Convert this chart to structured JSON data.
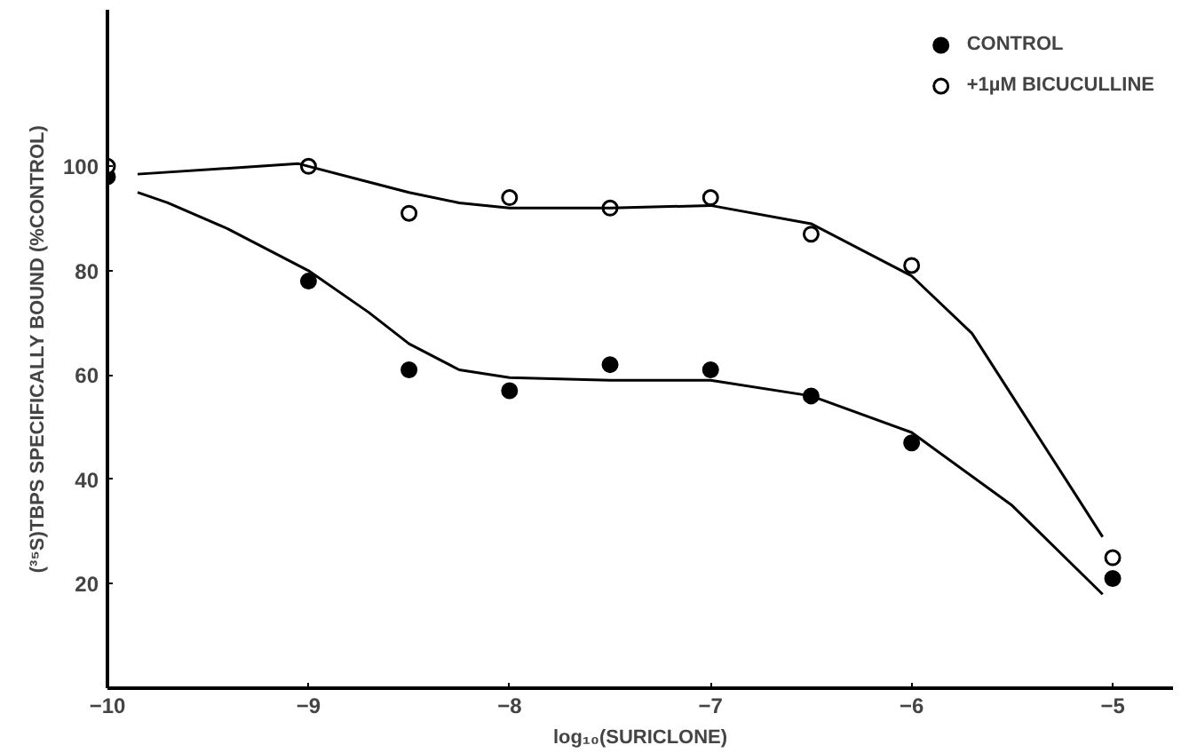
{
  "chart_data": {
    "type": "scatter",
    "xlabel": "log₁₀(SURICLONE)",
    "ylabel": "(³⁵S)TBPS SPECIFICALLY BOUND (%CONTROL)",
    "xlim": [
      -10,
      -4.7
    ],
    "ylim": [
      0,
      130
    ],
    "xticks": [
      -10,
      -9,
      -8,
      -7,
      -6,
      -5
    ],
    "yticks": [
      20,
      40,
      60,
      80,
      100
    ],
    "grid": false,
    "legend": "top right",
    "series": [
      {
        "name": "CONTROL",
        "marker": "circle",
        "color": "#000000",
        "x": [
          -10,
          -9,
          -8.5,
          -8,
          -7.5,
          -7,
          -6.5,
          -6,
          -5
        ],
        "values": [
          98,
          78,
          61,
          57,
          62,
          61,
          56,
          47,
          21
        ]
      },
      {
        "name": "+1µM BICUCULLINE",
        "marker": "circle",
        "color": "#ffffff",
        "x": [
          -10,
          -9,
          -8.5,
          -8,
          -7.5,
          -7,
          -6.5,
          -6,
          -5
        ],
        "values": [
          100,
          100,
          91,
          94,
          92,
          94,
          87,
          81,
          25
        ]
      },
      {
        "type": "line",
        "color": "#000000",
        "x": [
          -9.85,
          -9.7,
          -9.4,
          -9,
          -8.7,
          -8.5,
          -8.25,
          -8,
          -7.5,
          -7,
          -6.5,
          -6,
          -5.5,
          -5.05
        ],
        "values": [
          95,
          93,
          88,
          80,
          72,
          66,
          61,
          59.5,
          59,
          59,
          56,
          49,
          35,
          18
        ]
      },
      {
        "type": "line",
        "color": "#000000",
        "x": [
          -9.85,
          -9.05,
          -8.7,
          -8.5,
          -8.25,
          -8,
          -7.5,
          -7,
          -6.5,
          -6,
          -5.7,
          -5.5,
          -5.2,
          -5.05
        ],
        "values": [
          98.5,
          100.5,
          97,
          95,
          93,
          92,
          92,
          92.5,
          89,
          79,
          68,
          56,
          38,
          29
        ]
      }
    ]
  }
}
